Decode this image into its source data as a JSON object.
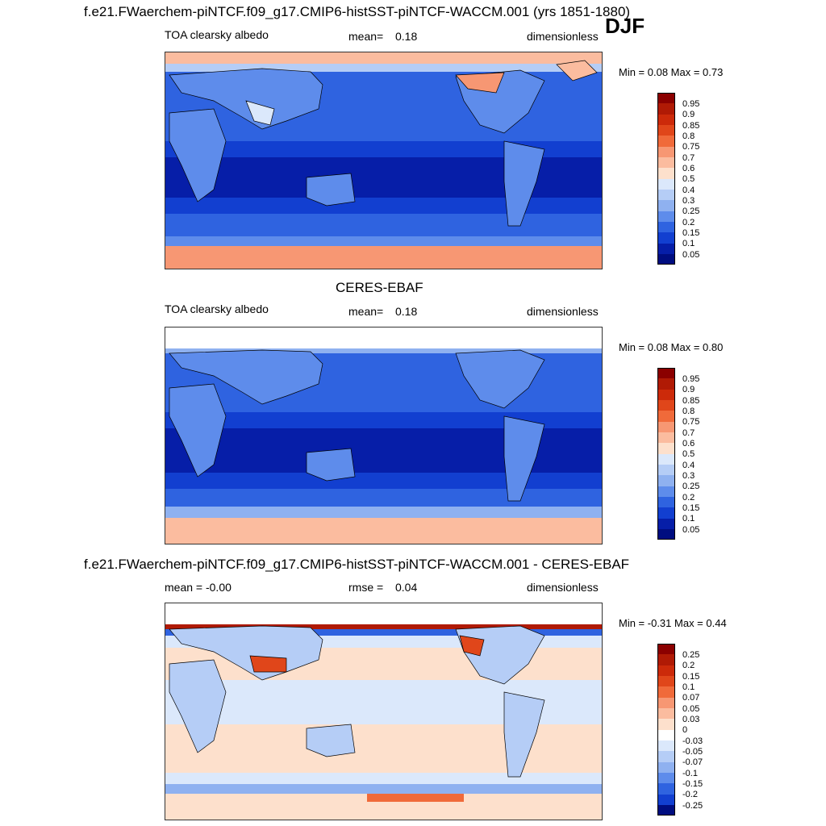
{
  "header": {
    "title": "f.e21.FWaerchem-piNTCF.f09_g17.CMIP6-histSST-piNTCF-WACCM.001 (yrs 1851-1880)",
    "season": "DJF"
  },
  "panels": [
    {
      "title": "",
      "variable": "TOA clearsky albedo",
      "stat_label": "mean=",
      "stat_value": "0.18",
      "units": "dimensionless",
      "minmax_text": "Min =   0.08 Max =   0.73",
      "legend_ticks": [
        "0.95",
        "0.9",
        "0.85",
        "0.8",
        "0.75",
        "0.7",
        "0.6",
        "0.5",
        "0.4",
        "0.3",
        "0.25",
        "0.2",
        "0.15",
        "0.1",
        "0.05"
      ]
    },
    {
      "title": "CERES-EBAF",
      "variable": "TOA clearsky albedo",
      "stat_label": "mean=",
      "stat_value": "0.18",
      "units": "dimensionless",
      "minmax_text": "Min =   0.08 Max =   0.80",
      "legend_ticks": [
        "0.95",
        "0.9",
        "0.85",
        "0.8",
        "0.75",
        "0.7",
        "0.6",
        "0.5",
        "0.4",
        "0.3",
        "0.25",
        "0.2",
        "0.15",
        "0.1",
        "0.05"
      ]
    },
    {
      "title": "f.e21.FWaerchem-piNTCF.f09_g17.CMIP6-histSST-piNTCF-WACCM.001 - CERES-EBAF",
      "variable": "mean =  -0.00",
      "stat_label": "rmse =",
      "stat_value": "0.04",
      "units": "dimensionless",
      "minmax_text": "Min =  -0.31 Max =   0.44",
      "legend_ticks": [
        "0.25",
        "0.2",
        "0.15",
        "0.1",
        "0.07",
        "0.05",
        "0.03",
        "0",
        "-0.03",
        "-0.05",
        "-0.07",
        "-0.1",
        "-0.15",
        "-0.2",
        "-0.25"
      ]
    }
  ],
  "colors": {
    "abs_palette": [
      "#8b0000",
      "#b01a05",
      "#cc2a0a",
      "#e0461a",
      "#f06a3a",
      "#f79773",
      "#fbbc9f",
      "#fde0cc",
      "#dbe8fb",
      "#b5cdf6",
      "#8fb1f0",
      "#5e8ceb",
      "#2f63e0",
      "#123fd0",
      "#061ea8",
      "#000d80"
    ],
    "diff_palette": [
      "#8b0000",
      "#b01a05",
      "#cc2a0a",
      "#e0461a",
      "#f06a3a",
      "#f79773",
      "#fbbc9f",
      "#fde0cc",
      "#ffffff",
      "#dbe8fb",
      "#b5cdf6",
      "#8fb1f0",
      "#5e8ceb",
      "#2f63e0",
      "#123fd0",
      "#000d80"
    ]
  }
}
